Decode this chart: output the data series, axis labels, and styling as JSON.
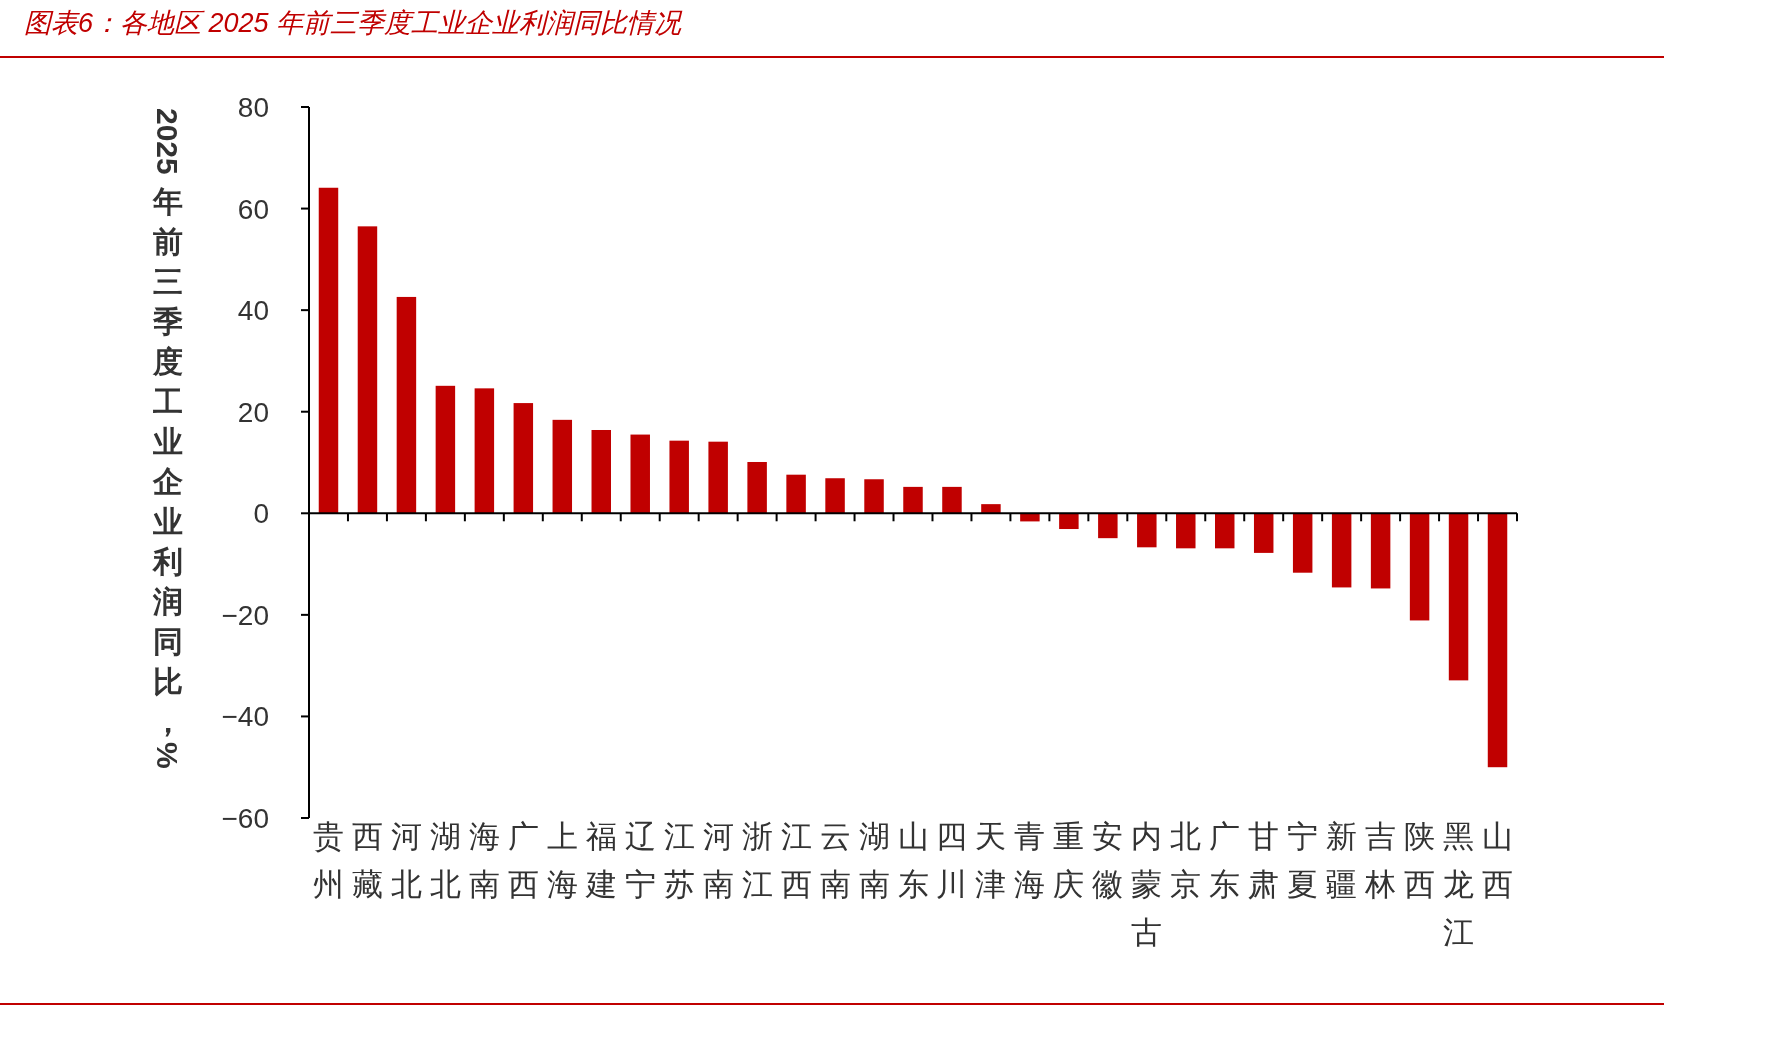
{
  "chart_data": {
    "type": "bar",
    "title": "图表6：各地区 2025 年前三季度工业企业利润同比情况",
    "ylabel": "2025年前三季度工业企业利润同比，%",
    "categories": [
      "贵州",
      "西藏",
      "河北",
      "湖北",
      "海南",
      "广西",
      "上海",
      "福建",
      "辽宁",
      "江苏",
      "河南",
      "浙江",
      "江西",
      "云南",
      "湖南",
      "山东",
      "四川",
      "天津",
      "青海",
      "重庆",
      "安徽",
      "内蒙古",
      "北京",
      "广东",
      "甘肃",
      "宁夏",
      "新疆",
      "吉林",
      "陕西",
      "黑龙江",
      "山西"
    ],
    "values": [
      64.1,
      56.5,
      42.6,
      25.1,
      24.6,
      21.7,
      18.4,
      16.4,
      15.5,
      14.3,
      14.1,
      10.1,
      7.6,
      6.9,
      6.7,
      5.2,
      5.2,
      1.8,
      -1.6,
      -3.1,
      -4.9,
      -6.7,
      -6.9,
      -6.9,
      -7.8,
      -11.7,
      -14.6,
      -14.8,
      -21.1,
      -32.9,
      -50.0
    ],
    "color": "#c00000",
    "ylim": [
      -60,
      80
    ],
    "yticks": [
      -60,
      -40,
      -20,
      0,
      20,
      40,
      60,
      80
    ]
  }
}
